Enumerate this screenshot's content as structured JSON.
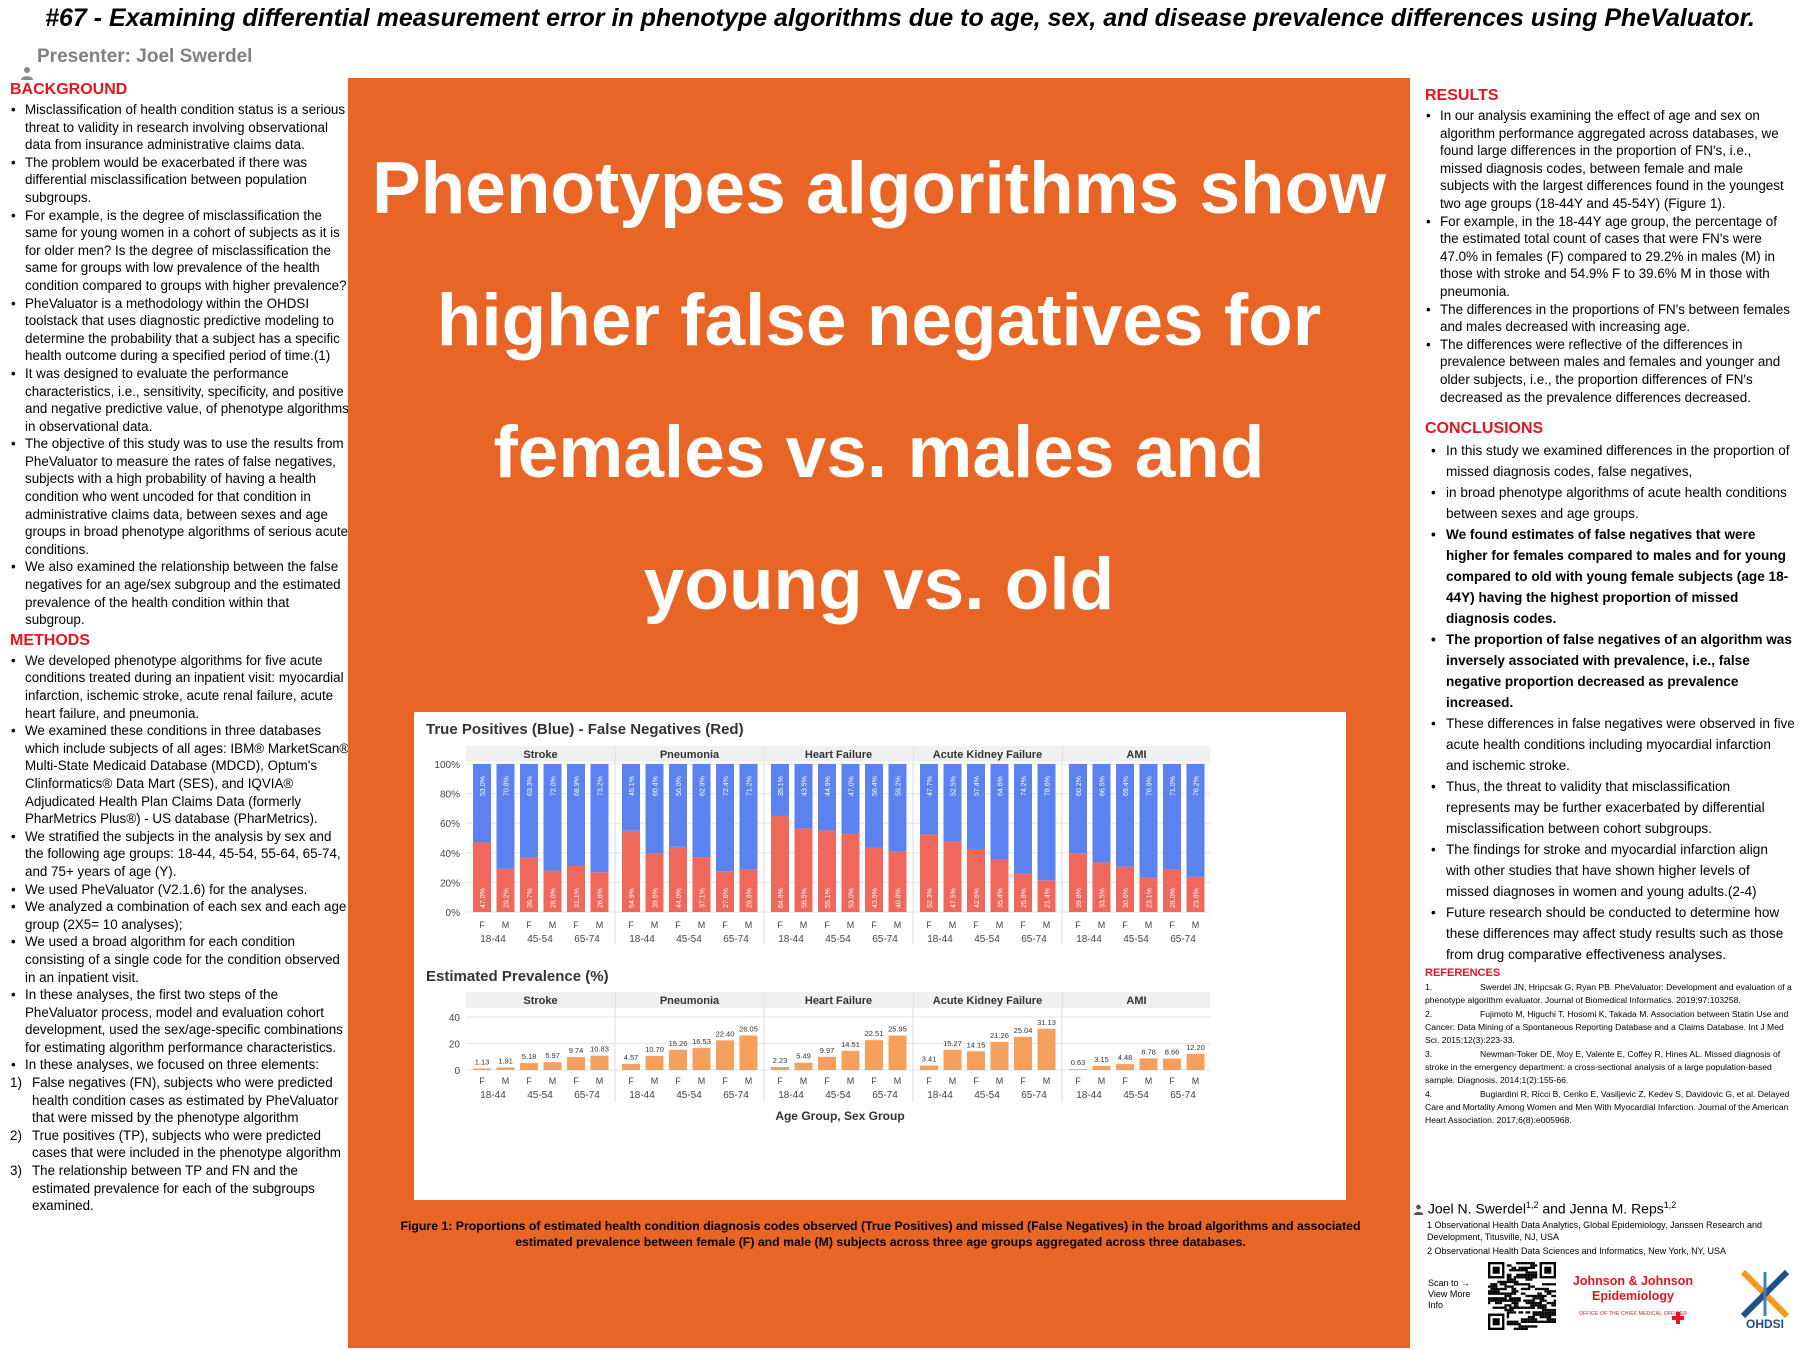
{
  "title": "#67 - Examining differential measurement error in phenotype algorithms due to age, sex, and disease prevalence differences using PheValuator.",
  "presenter": "Presenter: Joel Swerdel",
  "background": {
    "heading": "BACKGROUND",
    "items": [
      "Misclassification of health condition status is a serious threat to validity in research involving observational data from insurance administrative claims data.",
      "The problem would be exacerbated if there was differential misclassification between population subgroups.",
      "For example, is the degree of misclassification the same for young women in a cohort of subjects as it is for older men?  Is the degree of misclassification the same for groups with low prevalence of the health condition compared to groups with higher prevalence?",
      "PheValuator is a methodology within the OHDSI toolstack that uses diagnostic predictive modeling to determine the probability that a subject has a specific health outcome during a specified period of time.(1)",
      "It was designed to evaluate the performance characteristics, i.e., sensitivity, specificity, and positive and negative predictive value, of phenotype algorithms in observational data.",
      "The objective of this study was to use the results from PheValuator to measure the rates of false negatives, subjects with a high probability of having a health condition who went uncoded for that condition in administrative claims data, between sexes and age groups in broad phenotype algorithms of serious acute conditions.",
      "We also examined the relationship between the false negatives for an age/sex subgroup and the estimated prevalence of the health condition within that subgroup."
    ]
  },
  "methods": {
    "heading": "METHODS",
    "items": [
      "We developed phenotype algorithms for five acute conditions treated during an inpatient visit: myocardial infarction, ischemic stroke, acute renal failure, acute heart failure, and pneumonia.",
      "We examined these conditions in three databases which include subjects of all ages: IBM® MarketScan® Multi-State Medicaid Database (MDCD), Optum's Clinformatics® Data Mart (SES), and IQVIA® Adjudicated Health Plan Claims Data (formerly PharMetrics Plus®) - US database (PharMetrics).",
      "We stratified the subjects in the analysis by sex and the following age groups: 18-44, 45-54, 55-64, 65-74, and 75+ years of age (Y).",
      "We used PheValuator (V2.1.6) for the analyses.",
      "We analyzed a combination of each sex and each age group (2X5= 10 analyses);",
      "We used a broad algorithm for each condition consisting of a single code for the condition observed in an inpatient visit.",
      "In these analyses, the first two steps of the PheValuator process, model and evaluation cohort development, used the sex/age-specific combinations for estimating algorithm performance characteristics.",
      "In these analyses, we focused on three elements:"
    ],
    "numbered": [
      {
        "n": "1)",
        "text": "False negatives (FN), subjects who were predicted health condition cases as estimated by PheValuator that were missed by the phenotype algorithm"
      },
      {
        "n": "2)",
        "text": "True positives (TP), subjects who were predicted cases that were included in the phenotype algorithm"
      },
      {
        "n": "3)",
        "text": "The relationship between TP and FN and the estimated prevalence for each of the subgroups examined."
      }
    ]
  },
  "headline": [
    "Phenotypes algorithms show",
    "higher false negatives for",
    "females vs. males and",
    "young vs. old"
  ],
  "results": {
    "heading": "RESULTS",
    "items": [
      "In our analysis examining the effect of age and sex on algorithm performance aggregated across databases, we found large differences in the proportion of FN's, i.e., missed diagnosis codes, between female and male subjects with the largest differences found in the youngest two age groups (18-44Y and 45-54Y) (Figure 1).",
      "For example, in the 18-44Y age group, the percentage of the estimated total count of cases that were FN's were 47.0% in females (F) compared to 29.2% in males (M) in those with stroke and 54.9% F to 39.6% M in those with pneumonia.",
      "The differences in the proportions of FN's between females and males decreased with increasing age.",
      "The differences were reflective of the differences in prevalence between males and females and younger and older subjects, i.e., the proportion differences of FN's decreased as the prevalence differences decreased."
    ]
  },
  "conclusions": {
    "heading": "CONCLUSIONS",
    "items": [
      {
        "text": "In this study we examined differences in the proportion of missed diagnosis codes, false negatives,",
        "bold": false
      },
      {
        "text": " in broad phenotype algorithms of acute health conditions between sexes and age groups.",
        "bold": false
      },
      {
        "text": "We found estimates of false negatives that were higher for females compared to males and for young compared to old with young female subjects (age 18-44Y) having the highest proportion of missed diagnosis codes.",
        "bold": true
      },
      {
        "text": "The proportion of false negatives of an algorithm was inversely associated with prevalence, i.e., false negative proportion decreased as prevalence increased.",
        "bold": true
      },
      {
        "text": "These differences in false negatives were observed in five acute health conditions including myocardial infarction and ischemic stroke.",
        "bold": false
      },
      {
        "text": "Thus, the threat to validity that misclassification represents may be further exacerbated by differential misclassification between cohort subgroups.",
        "bold": false
      },
      {
        "text": "The findings for stroke and myocardial infarction align with other studies that have shown higher levels of missed diagnoses in women and young adults.(2-4)",
        "bold": false
      },
      {
        "text": "Future research should be conducted to determine how these differences may affect study results such as those from drug comparative effectiveness analyses.",
        "bold": false
      }
    ]
  },
  "references": {
    "heading": "REFERENCES",
    "items": [
      {
        "n": "1.",
        "text": "Swerdel JN, Hripcsak G, Ryan PB. PheValuator: Development and evaluation of a phenotype algorithm evaluator. Journal of Biomedical Informatics. 2019;97:103258."
      },
      {
        "n": "2.",
        "text": "Fujimoto M, Higuchi T, Hosomi K, Takada M. Association between Statin Use and Cancer: Data Mining of a Spontaneous Reporting Database and a Claims Database. Int J Med Sci. 2015;12(3):223-33."
      },
      {
        "n": "3.",
        "text": "Newman-Toker DE, Moy E, Valente E, Coffey R, Hines AL. Missed diagnosis of stroke in the emergency department: a cross-sectional analysis of a large population-based sample. Diagnosis. 2014;1(2):155-66."
      },
      {
        "n": "4.",
        "text": "Bugiardini R, Ricci B, Cenko E, Vasiljevic Z, Kedev S, Davidovic G, et al. Delayed Care and Mortality Among Women and Men With Myocardial Infarction. Journal of the American Heart Association. 2017;6(8):e005968."
      }
    ]
  },
  "authors": {
    "name1": "Joel N. Swerdel",
    "sup1": "1,2",
    "and": " and ",
    "name2": "Jenna M. Reps",
    "sup2": "1,2",
    "aff1": "1 Observational Health Data Analytics, Global Epidemiology, Janssen Research and Development, Titusville, NJ, USA",
    "aff2": "2 Observational Health Data Sciences and Informatics, New York, NY, USA"
  },
  "scan_text": "Scan to → View More Info",
  "jj_logo": {
    "line1": "Johnson & Johnson",
    "line2": "Epidemiology",
    "sub": "OFFICE OF THE CHIEF MEDICAL OFFICER"
  },
  "ohdsi_logo": "OHDSI",
  "figure_caption": "Figure 1: Proportions of estimated health condition diagnosis codes observed (True Positives) and missed (False Negatives) in the broad algorithms and associated estimated prevalence between female (F) and male (M) subjects across three age groups aggregated across three databases.",
  "colors": {
    "accent_orange": "#e96526",
    "heading_red": "#e8141e",
    "tp_blue": "#5b82ef",
    "fn_red": "#f0685c",
    "prev_orange": "#f5a05f"
  },
  "chart_data": [
    {
      "type": "bar",
      "stacked": true,
      "title": "True Positives (Blue) - False Negatives (Red)",
      "panels": [
        "Stroke",
        "Pneumonia",
        "Heart Failure",
        "Acute Kidney Failure",
        "AMI"
      ],
      "categories": [
        "F",
        "M",
        "F",
        "M",
        "F",
        "M",
        "F",
        "M",
        "F",
        "M"
      ],
      "age_groups": [
        "18-44",
        "45-54",
        "65-74"
      ],
      "yticks": [
        "100%",
        "80%",
        "60%",
        "40%",
        "20%",
        "0%"
      ],
      "ylim": [
        0,
        100
      ],
      "series": [
        {
          "name": "False Negatives",
          "values": [
            [
              47.0,
              29.2,
              36.7,
              28.0,
              31.1,
              26.8,
              0,
              0,
              0,
              0
            ],
            [
              54.9,
              39.6,
              44.0,
              37.1,
              27.6,
              28.8,
              0,
              0,
              0,
              0
            ],
            [
              64.9,
              56.5,
              55.1,
              53.0,
              43.6,
              40.8,
              0,
              0,
              0,
              0
            ],
            [
              52.3,
              47.5,
              42.6,
              35.4,
              25.8,
              21.4,
              0,
              0,
              0,
              0
            ],
            [
              39.8,
              33.5,
              30.6,
              23.1,
              29.0,
              23.8,
              0,
              0,
              0,
              0
            ]
          ]
        },
        {
          "name": "True Positives",
          "values": [
            [
              53.0,
              70.8,
              63.3,
              72.0,
              68.9,
              73.2,
              0,
              0,
              0,
              0
            ],
            [
              45.1,
              60.4,
              56.0,
              62.9,
              72.4,
              71.2,
              0,
              0,
              0,
              0
            ],
            [
              35.1,
              43.5,
              44.9,
              47.0,
              56.4,
              59.2,
              0,
              0,
              0,
              0
            ],
            [
              47.7,
              52.5,
              57.4,
              64.6,
              74.2,
              78.6,
              0,
              0,
              0,
              0
            ],
            [
              60.2,
              66.5,
              69.4,
              76.9,
              71.0,
              76.2,
              0,
              0,
              0,
              0
            ]
          ]
        }
      ],
      "fn_labels": [
        [
          "47.0%",
          "29.2%",
          "36.7%",
          "28.0%",
          "31.1%",
          "26.8%"
        ],
        [
          "54.9%",
          "39.6%",
          "44.0%",
          "37.1%",
          "27.6%",
          "28.8%"
        ],
        [
          "64.9%",
          "56.5%",
          "55.1%",
          "53.0%",
          "43.6%",
          "40.8%"
        ],
        [
          "52.3%",
          "47.5%",
          "42.6%",
          "35.4%",
          "25.8%",
          "21.4%"
        ],
        [
          "39.8%",
          "33.5%",
          "30.6%",
          "23.1%",
          "29.0%",
          "23.8%"
        ]
      ],
      "tp_labels": [
        [
          "53.0%",
          "70.8%",
          "63.3%",
          "72.0%",
          "68.9%",
          "73.2%"
        ],
        [
          "45.1%",
          "60.4%",
          "56.0%",
          "62.9%",
          "72.4%",
          "71.2%"
        ],
        [
          "35.1%",
          "43.5%",
          "44.9%",
          "47.0%",
          "56.4%",
          "59.2%"
        ],
        [
          "47.7%",
          "52.5%",
          "57.4%",
          "64.6%",
          "74.2%",
          "78.6%"
        ],
        [
          "60.2%",
          "66.5%",
          "69.4%",
          "76.9%",
          "71.0%",
          "76.2%"
        ]
      ]
    },
    {
      "type": "bar",
      "title": "Estimated Prevalence (%)",
      "panels": [
        "Stroke",
        "Pneumonia",
        "Heart Failure",
        "Acute Kidney Failure",
        "AMI"
      ],
      "categories": [
        "F",
        "M",
        "F",
        "M",
        "F",
        "M"
      ],
      "age_groups": [
        "18-44",
        "45-54",
        "65-74"
      ],
      "yticks": [
        "40",
        "20",
        "0"
      ],
      "ylim": [
        0,
        40
      ],
      "values": [
        [
          1.13,
          1.91,
          5.18,
          5.97,
          9.74,
          10.83
        ],
        [
          4.57,
          10.7,
          15.26,
          16.53,
          22.4,
          26.05
        ],
        [
          2.23,
          5.49,
          9.97,
          14.51,
          22.51,
          25.95
        ],
        [
          3.41,
          15.27,
          14.15,
          21.26,
          25.04,
          31.13
        ],
        [
          0.63,
          3.15,
          4.48,
          8.78,
          8.66,
          12.2
        ]
      ],
      "value_labels": [
        [
          "1.13",
          "1.91",
          "5.18",
          "5.97",
          "9.74",
          "10.83"
        ],
        [
          "4.57",
          "10.70",
          "15.26",
          "16.53",
          "22.40",
          "26.05"
        ],
        [
          "2.23",
          "5.49",
          "9.97",
          "14.51",
          "22.51",
          "25.95"
        ],
        [
          "3.41",
          "15.27",
          "14.15",
          "21.26",
          "25.04",
          "31.13"
        ],
        [
          "0.63",
          "3.15",
          "4.48",
          "8.78",
          "8.66",
          "12.20"
        ]
      ],
      "xlabel": "Age Group, Sex Group"
    }
  ]
}
